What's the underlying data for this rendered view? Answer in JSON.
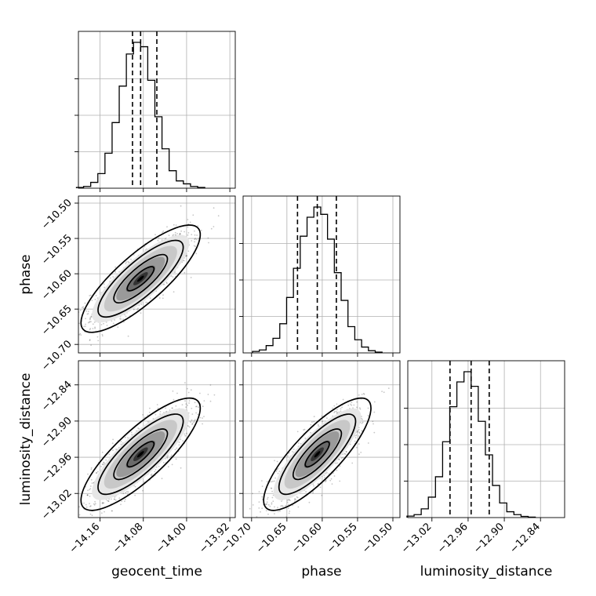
{
  "chart_data": {
    "type": "corner",
    "parameters": [
      "geocent_time",
      "phase",
      "luminosity_distance"
    ],
    "axis_labels": [
      "geocent_time",
      "phase",
      "luminosity_distance"
    ],
    "ranges": [
      [
        -14.2,
        -13.91
      ],
      [
        -10.712,
        -10.49
      ],
      [
        -13.06,
        -12.8
      ]
    ],
    "ticks": [
      {
        "values": [
          -14.16,
          -14.08,
          -14.0,
          -13.92
        ],
        "labels": [
          "−14.16",
          "−14.08",
          "−14.00",
          "−13.92"
        ]
      },
      {
        "values": [
          -10.7,
          -10.65,
          -10.6,
          -10.55,
          -10.5
        ],
        "labels": [
          "−10.70",
          "−10.65",
          "−10.60",
          "−10.55",
          "−10.50"
        ]
      },
      {
        "values": [
          -13.02,
          -12.96,
          -12.9,
          -12.84
        ],
        "labels": [
          "−13.02",
          "−12.96",
          "−12.90",
          "−12.84"
        ]
      }
    ],
    "grid": true,
    "marginals": [
      {
        "parameter": "geocent_time",
        "quantiles": [
          -14.1,
          -14.085,
          -14.055
        ],
        "counts": [
          0.005,
          0.012,
          0.04,
          0.1,
          0.24,
          0.45,
          0.7,
          0.92,
          1.0,
          0.97,
          0.74,
          0.49,
          0.27,
          0.12,
          0.05,
          0.03,
          0.012,
          0.005
        ]
      },
      {
        "parameter": "phase",
        "quantiles": [
          -10.635,
          -10.607,
          -10.58
        ],
        "counts": [
          0.01,
          0.02,
          0.05,
          0.1,
          0.2,
          0.38,
          0.58,
          0.8,
          0.93,
          1.0,
          0.95,
          0.78,
          0.55,
          0.36,
          0.18,
          0.09,
          0.04,
          0.015,
          0.005
        ]
      },
      {
        "parameter": "luminosity_distance",
        "quantiles": [
          -12.99,
          -12.955,
          -12.925
        ],
        "counts": [
          0.01,
          0.02,
          0.06,
          0.14,
          0.28,
          0.52,
          0.76,
          0.93,
          1.0,
          0.9,
          0.66,
          0.43,
          0.22,
          0.1,
          0.04,
          0.02,
          0.008,
          0.003
        ]
      }
    ],
    "pairs": [
      {
        "x": "geocent_time",
        "y": "phase",
        "mean": [
          -14.085,
          -10.607
        ],
        "sd": [
          0.045,
          0.031
        ],
        "rho": 0.82
      },
      {
        "x": "geocent_time",
        "y": "luminosity_distance",
        "mean": [
          -14.085,
          -12.955
        ],
        "sd": [
          0.045,
          0.038
        ],
        "rho": 0.82
      },
      {
        "x": "phase",
        "y": "luminosity_distance",
        "mean": [
          -10.607,
          -12.955
        ],
        "sd": [
          0.031,
          0.038
        ],
        "rho": 0.82
      }
    ]
  }
}
